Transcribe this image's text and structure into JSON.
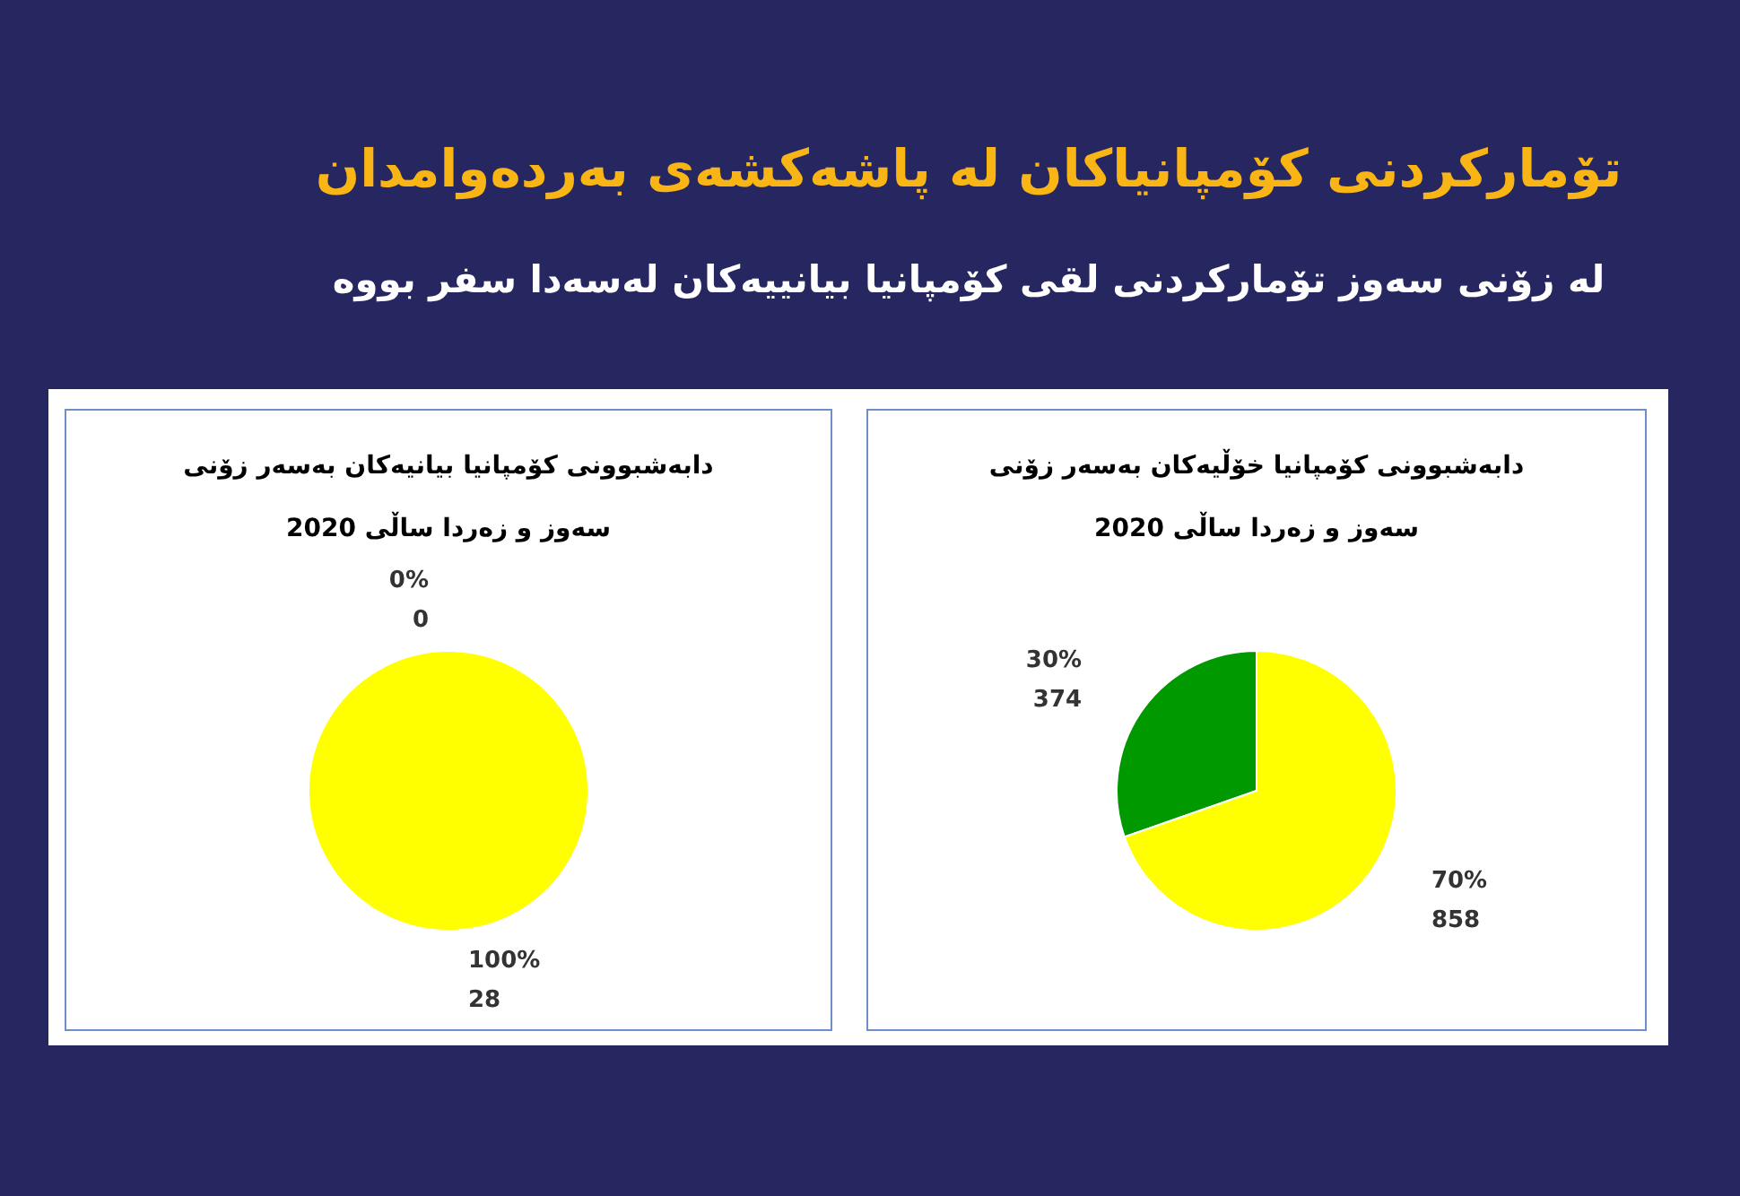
{
  "chart_data": [
    {
      "type": "other",
      "title": "تۆمارکردنی کۆمپانیاکان لە پاشەکشەی بەردەوامدان",
      "subtitle": "لە زۆنی سەوز تۆمارکردنی لقی کۆمپانیا بیانییەکان لەسەدا سفر بووە"
    },
    {
      "type": "pie",
      "title": "دابەشبوونی کۆمپانیا بیانیەکان بەسەر زۆنی\nسەوز و زەردا ساڵی 2020",
      "categories": [
        null,
        null
      ],
      "values": [
        0,
        28
      ],
      "colors": [
        "#009900",
        "#ffff00"
      ],
      "value_labels": [
        "0%\n0",
        "100%\n28"
      ]
    },
    {
      "type": "pie",
      "title": "دابەشبوونی کۆمپانیا خۆڵیەکان بەسەر زۆنی\nسەوز و زەردا ساڵی 2020",
      "categories": [
        null,
        null
      ],
      "values": [
        374,
        858
      ],
      "colors": [
        "#009900",
        "#ffff00"
      ],
      "value_labels": [
        "30%\n374",
        "70%\n858"
      ]
    }
  ]
}
